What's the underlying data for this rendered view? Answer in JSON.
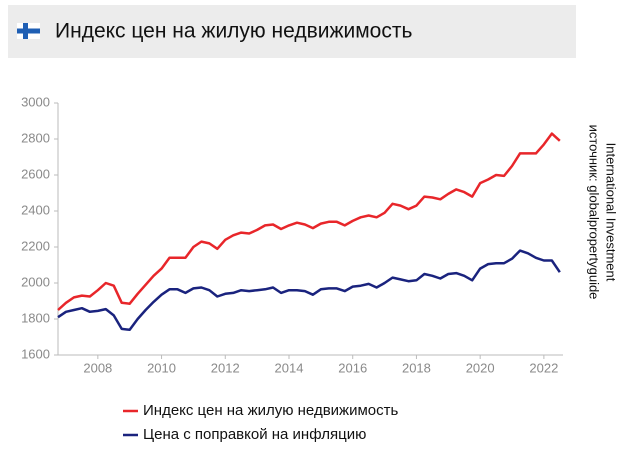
{
  "chart_data": {
    "type": "line",
    "title": "Индекс цен на жилую недвижимость",
    "source": [
      "International Investment",
      "источник: globalpropertyguide"
    ],
    "x": [
      2006.75,
      2007.0,
      2007.25,
      2007.5,
      2007.75,
      2008.0,
      2008.25,
      2008.5,
      2008.75,
      2009.0,
      2009.25,
      2009.5,
      2009.75,
      2010.0,
      2010.25,
      2010.5,
      2010.75,
      2011.0,
      2011.25,
      2011.5,
      2011.75,
      2012.0,
      2012.25,
      2012.5,
      2012.75,
      2013.0,
      2013.25,
      2013.5,
      2013.75,
      2014.0,
      2014.25,
      2014.5,
      2014.75,
      2015.0,
      2015.25,
      2015.5,
      2015.75,
      2016.0,
      2016.25,
      2016.5,
      2016.75,
      2017.0,
      2017.25,
      2017.5,
      2017.75,
      2018.0,
      2018.25,
      2018.5,
      2018.75,
      2019.0,
      2019.25,
      2019.5,
      2019.75,
      2020.0,
      2020.25,
      2020.5,
      2020.75,
      2021.0,
      2021.25,
      2021.5,
      2021.75,
      2022.0,
      2022.25,
      2022.5
    ],
    "series": [
      {
        "name": "Индекс цен на жилую недвижимость",
        "color": "#e8262a",
        "values": [
          1850,
          1890,
          1920,
          1930,
          1925,
          1960,
          2000,
          1985,
          1890,
          1885,
          1940,
          1990,
          2040,
          2080,
          2140,
          2140,
          2140,
          2200,
          2230,
          2220,
          2190,
          2240,
          2265,
          2280,
          2275,
          2295,
          2320,
          2325,
          2300,
          2320,
          2335,
          2325,
          2305,
          2330,
          2340,
          2340,
          2320,
          2345,
          2365,
          2375,
          2365,
          2390,
          2440,
          2430,
          2410,
          2430,
          2480,
          2475,
          2465,
          2495,
          2520,
          2505,
          2480,
          2555,
          2575,
          2600,
          2595,
          2650,
          2720,
          2720,
          2720,
          2770,
          2830,
          2790
        ]
      },
      {
        "name": "Цена с поправкой на инфляцию",
        "color": "#1a237e",
        "values": [
          1810,
          1840,
          1850,
          1860,
          1840,
          1845,
          1855,
          1820,
          1745,
          1740,
          1800,
          1850,
          1895,
          1935,
          1965,
          1965,
          1945,
          1970,
          1975,
          1960,
          1925,
          1940,
          1945,
          1960,
          1955,
          1960,
          1965,
          1975,
          1945,
          1960,
          1960,
          1955,
          1935,
          1965,
          1970,
          1970,
          1955,
          1980,
          1985,
          1995,
          1975,
          2000,
          2030,
          2020,
          2010,
          2015,
          2050,
          2040,
          2025,
          2050,
          2055,
          2040,
          2015,
          2080,
          2105,
          2110,
          2110,
          2135,
          2180,
          2165,
          2140,
          2125,
          2125,
          2060
        ]
      }
    ],
    "xlim": [
      2006.75,
      2022.6
    ],
    "xticks": [
      2008,
      2010,
      2012,
      2014,
      2016,
      2018,
      2020,
      2022
    ],
    "ylim": [
      1600,
      3000
    ],
    "yticks": [
      1600,
      1800,
      2000,
      2200,
      2400,
      2600,
      2800,
      3000
    ],
    "grid": false
  }
}
